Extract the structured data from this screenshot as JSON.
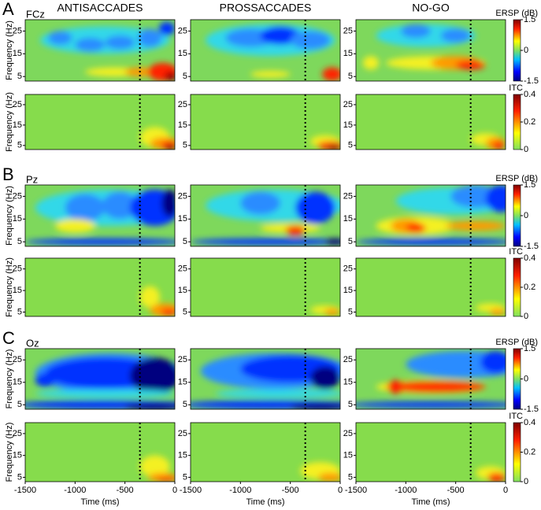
{
  "chart_data": {
    "type": "heatmap",
    "panel_labels": [
      "A",
      "B",
      "C"
    ],
    "channels": [
      "FCz",
      "Pz",
      "Oz"
    ],
    "column_titles": [
      "ANTISACCADES",
      "PROSSACCADES",
      "NO-GO"
    ],
    "xlabel": "Time (ms)",
    "xlim": [
      -1500,
      0
    ],
    "xticks": [
      -1500,
      -1000,
      -500,
      0
    ],
    "ylabel": "Frequency (Hz)",
    "ylim": [
      3,
      30
    ],
    "yticks": [
      5,
      15,
      25
    ],
    "marker_time": -350,
    "ersp_colorbar": {
      "title": "ERSP (dB)",
      "lim": [
        -1.5,
        1.5
      ],
      "ticks": [
        -1.5,
        0,
        1.5
      ]
    },
    "itc_colorbar": {
      "title": "ITC",
      "lim": [
        0,
        0.4
      ],
      "ticks": [
        0,
        0.2,
        0.4
      ]
    }
  }
}
